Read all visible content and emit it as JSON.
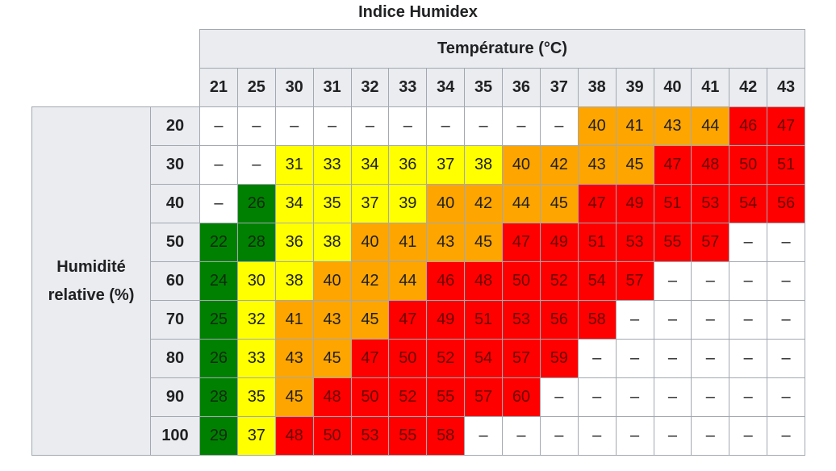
{
  "title": "Indice Humidex",
  "table": {
    "column_group": "Température (°C)",
    "row_group": "Humidité relative (%)",
    "columns": [
      21,
      25,
      30,
      31,
      32,
      33,
      34,
      35,
      36,
      37,
      38,
      39,
      40,
      41,
      42,
      43
    ],
    "rows": [
      {
        "label": 20,
        "cells": [
          "–",
          "–",
          "–",
          "–",
          "–",
          "–",
          "–",
          "–",
          "–",
          "–",
          40,
          41,
          43,
          44,
          46,
          47
        ],
        "colors": [
          "#ffffff",
          "#ffffff",
          "#ffffff",
          "#ffffff",
          "#ffffff",
          "#ffffff",
          "#ffffff",
          "#ffffff",
          "#ffffff",
          "#ffffff",
          "#ffa500",
          "#ffa500",
          "#ffa500",
          "#ffa500",
          "#ff0000",
          "#ff0000"
        ]
      },
      {
        "label": 30,
        "cells": [
          "–",
          "–",
          31,
          33,
          34,
          36,
          37,
          38,
          40,
          42,
          43,
          45,
          47,
          48,
          50,
          51
        ],
        "colors": [
          "#ffffff",
          "#ffffff",
          "#ffff00",
          "#ffff00",
          "#ffff00",
          "#ffff00",
          "#ffff00",
          "#ffff00",
          "#ffa500",
          "#ffa500",
          "#ffa500",
          "#ffa500",
          "#ff0000",
          "#ff0000",
          "#ff0000",
          "#ff0000"
        ]
      },
      {
        "label": 40,
        "cells": [
          "–",
          26,
          34,
          35,
          37,
          39,
          40,
          42,
          44,
          45,
          47,
          49,
          51,
          53,
          54,
          56
        ],
        "colors": [
          "#ffffff",
          "#008000",
          "#ffff00",
          "#ffff00",
          "#ffff00",
          "#ffff00",
          "#ffa500",
          "#ffa500",
          "#ffa500",
          "#ffa500",
          "#ff0000",
          "#ff0000",
          "#ff0000",
          "#ff0000",
          "#ff0000",
          "#ff0000"
        ]
      },
      {
        "label": 50,
        "cells": [
          22,
          28,
          36,
          38,
          40,
          41,
          43,
          45,
          47,
          49,
          51,
          53,
          55,
          57,
          "–",
          "–"
        ],
        "colors": [
          "#008000",
          "#008000",
          "#ffff00",
          "#ffff00",
          "#ffa500",
          "#ffa500",
          "#ffa500",
          "#ffa500",
          "#ff0000",
          "#ff0000",
          "#ff0000",
          "#ff0000",
          "#ff0000",
          "#ff0000",
          "#ffffff",
          "#ffffff"
        ]
      },
      {
        "label": 60,
        "cells": [
          24,
          30,
          38,
          40,
          42,
          44,
          46,
          48,
          50,
          52,
          54,
          57,
          "–",
          "–",
          "–",
          "–"
        ],
        "colors": [
          "#008000",
          "#ffff00",
          "#ffff00",
          "#ffa500",
          "#ffa500",
          "#ffa500",
          "#ff0000",
          "#ff0000",
          "#ff0000",
          "#ff0000",
          "#ff0000",
          "#ff0000",
          "#ffffff",
          "#ffffff",
          "#ffffff",
          "#ffffff"
        ]
      },
      {
        "label": 70,
        "cells": [
          25,
          32,
          41,
          43,
          45,
          47,
          49,
          51,
          53,
          56,
          58,
          "–",
          "–",
          "–",
          "–",
          "–"
        ],
        "colors": [
          "#008000",
          "#ffff00",
          "#ffa500",
          "#ffa500",
          "#ffa500",
          "#ff0000",
          "#ff0000",
          "#ff0000",
          "#ff0000",
          "#ff0000",
          "#ff0000",
          "#ffffff",
          "#ffffff",
          "#ffffff",
          "#ffffff",
          "#ffffff"
        ]
      },
      {
        "label": 80,
        "cells": [
          26,
          33,
          43,
          45,
          47,
          50,
          52,
          54,
          57,
          59,
          "–",
          "–",
          "–",
          "–",
          "–",
          "–"
        ],
        "colors": [
          "#008000",
          "#ffff00",
          "#ffa500",
          "#ffa500",
          "#ff0000",
          "#ff0000",
          "#ff0000",
          "#ff0000",
          "#ff0000",
          "#ff0000",
          "#ffffff",
          "#ffffff",
          "#ffffff",
          "#ffffff",
          "#ffffff",
          "#ffffff"
        ]
      },
      {
        "label": 90,
        "cells": [
          28,
          35,
          45,
          48,
          50,
          52,
          55,
          57,
          60,
          "–",
          "–",
          "–",
          "–",
          "–",
          "–",
          "–"
        ],
        "colors": [
          "#008000",
          "#ffff00",
          "#ffa500",
          "#ff0000",
          "#ff0000",
          "#ff0000",
          "#ff0000",
          "#ff0000",
          "#ff0000",
          "#ffffff",
          "#ffffff",
          "#ffffff",
          "#ffffff",
          "#ffffff",
          "#ffffff",
          "#ffffff"
        ]
      },
      {
        "label": 100,
        "cells": [
          29,
          37,
          48,
          50,
          53,
          55,
          58,
          "–",
          "–",
          "–",
          "–",
          "–",
          "–",
          "–",
          "–",
          "–"
        ],
        "colors": [
          "#008000",
          "#ffff00",
          "#ff0000",
          "#ff0000",
          "#ff0000",
          "#ff0000",
          "#ff0000",
          "#ffffff",
          "#ffffff",
          "#ffffff",
          "#ffffff",
          "#ffffff",
          "#ffffff",
          "#ffffff",
          "#ffffff",
          "#ffffff"
        ]
      }
    ]
  }
}
